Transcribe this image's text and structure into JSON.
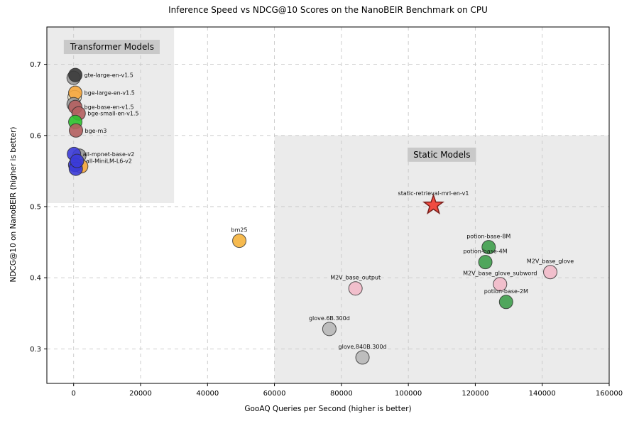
{
  "chart_data": {
    "type": "scatter",
    "title": "Inference Speed vs NDCG@10 Scores on the NanoBEIR Benchmark on CPU",
    "xlabel": "GooAQ Queries per Second (higher is better)",
    "ylabel": "NDCG@10 on NanoBEIR (higher is better)",
    "xlim": [
      -8000,
      160000
    ],
    "ylim": [
      0.2515,
      0.7525
    ],
    "grid": true,
    "legend": "none",
    "colors": {
      "grid": "#c8c8c8",
      "region_fill": "#ebebeb",
      "region_label_bg": "#c9c9c9",
      "marker_edge": "#2a2a2a",
      "star_fill": "#f04338",
      "star_edge": "#7a201c",
      "text": "#000000"
    },
    "xticks": [
      {
        "v": 0,
        "label": "0"
      },
      {
        "v": 20000,
        "label": "20000"
      },
      {
        "v": 40000,
        "label": "40000"
      },
      {
        "v": 60000,
        "label": "60000"
      },
      {
        "v": 80000,
        "label": "80000"
      },
      {
        "v": 100000,
        "label": "100000"
      },
      {
        "v": 120000,
        "label": "120000"
      },
      {
        "v": 140000,
        "label": "140000"
      },
      {
        "v": 160000,
        "label": "160000"
      }
    ],
    "yticks": [
      {
        "v": 0.3,
        "label": "0.3"
      },
      {
        "v": 0.4,
        "label": "0.4"
      },
      {
        "v": 0.5,
        "label": "0.5"
      },
      {
        "v": 0.6,
        "label": "0.6"
      },
      {
        "v": 0.7,
        "label": "0.7"
      }
    ],
    "regions": [
      {
        "name": "transformer-models-region",
        "label": "Transformer Models",
        "x0": -8000,
        "x1": 30000,
        "y0": 0.505,
        "y1": 0.7525,
        "label_x": 11500,
        "label_y": 0.7245
      },
      {
        "name": "static-models-region",
        "label": "Static Models",
        "x0": 60000,
        "x1": 160000,
        "y0": 0.2515,
        "y1": 0.6,
        "label_x": 110000,
        "label_y": 0.573
      }
    ],
    "points": [
      {
        "label": "",
        "x": 0,
        "y": 0.681,
        "color": "#9a9a9a",
        "marker": "circle",
        "label_pos": "none"
      },
      {
        "label": "gte-large-en-v1.5",
        "x": 500,
        "y": 0.685,
        "color": "#383838",
        "marker": "circle",
        "label_pos": "right"
      },
      {
        "label": "",
        "x": 300,
        "y": 0.654,
        "color": "#f2ecd0",
        "marker": "circle",
        "label_pos": "none"
      },
      {
        "label": "bge-large-en-v1.5",
        "x": 500,
        "y": 0.66,
        "color": "#f5a63c",
        "marker": "circle",
        "label_pos": "right"
      },
      {
        "label": "",
        "x": 0,
        "y": 0.644,
        "color": "#9a9a9a",
        "marker": "circle",
        "label_pos": "none"
      },
      {
        "label": "bge-base-en-v1.5",
        "x": 500,
        "y": 0.64,
        "color": "#b45f5f",
        "marker": "circle",
        "label_pos": "right"
      },
      {
        "label": "bge-small-en-v1.5",
        "x": 1500,
        "y": 0.631,
        "color": "#b45f5f",
        "marker": "circle",
        "label_pos": "right"
      },
      {
        "label": "",
        "x": 500,
        "y": 0.619,
        "color": "#2ec22e",
        "marker": "circle",
        "label_pos": "none"
      },
      {
        "label": "bge-m3",
        "x": 700,
        "y": 0.607,
        "color": "#b45f5f",
        "marker": "circle",
        "label_pos": "right"
      },
      {
        "label": "",
        "x": 1700,
        "y": 0.5716,
        "color": "#9a9a9a",
        "marker": "circle",
        "label_pos": "none"
      },
      {
        "label": "",
        "x": 2250,
        "y": 0.5566,
        "color": "#f5a63c",
        "marker": "circle",
        "label_pos": "none"
      },
      {
        "label": "all-mpnet-base-v2",
        "x": 100,
        "y": 0.574,
        "color": "#3b3bd8",
        "marker": "circle",
        "label_pos": "right"
      },
      {
        "label": "",
        "x": 450,
        "y": 0.5586,
        "color": "#3b3bd8",
        "marker": "circle",
        "label_pos": "none"
      },
      {
        "label": "",
        "x": 650,
        "y": 0.5532,
        "color": "#3b3bd8",
        "marker": "circle",
        "label_pos": "none"
      },
      {
        "label": "all-MiniLM-L6-v2",
        "x": 1000,
        "y": 0.5642,
        "color": "#3b3bd8",
        "marker": "circle",
        "label_pos": "right"
      },
      {
        "label": "bm25",
        "x": 49500,
        "y": 0.452,
        "color": "#f5b33c",
        "marker": "circle",
        "label_pos": "above"
      },
      {
        "label": "static-retrieval-mrl-en-v1",
        "x": 107500,
        "y": 0.502,
        "color": "#f04338",
        "marker": "star",
        "label_pos": "above"
      },
      {
        "label": "potion-base-8M",
        "x": 124000,
        "y": 0.443,
        "color": "#3f9e4d",
        "marker": "circle",
        "label_pos": "above"
      },
      {
        "label": "potion-base-4M",
        "x": 123000,
        "y": 0.422,
        "color": "#3f9e4d",
        "marker": "circle",
        "label_pos": "above"
      },
      {
        "label": "M2V_base_glove",
        "x": 142400,
        "y": 0.408,
        "color": "#f2bac9",
        "marker": "circle",
        "label_pos": "above"
      },
      {
        "label": "M2V_base_glove_subword",
        "x": 127400,
        "y": 0.391,
        "color": "#f2bac9",
        "marker": "circle",
        "label_pos": "above"
      },
      {
        "label": "M2V_base_output",
        "x": 84200,
        "y": 0.385,
        "color": "#f2bac9",
        "marker": "circle",
        "label_pos": "above"
      },
      {
        "label": "potion-base-2M",
        "x": 129200,
        "y": 0.366,
        "color": "#3f9e4d",
        "marker": "circle",
        "label_pos": "above"
      },
      {
        "label": "glove.6B.300d",
        "x": 76400,
        "y": 0.328,
        "color": "#b8b8b8",
        "marker": "circle",
        "label_pos": "above"
      },
      {
        "label": "glove.840B.300d",
        "x": 86300,
        "y": 0.288,
        "color": "#b8b8b8",
        "marker": "circle",
        "label_pos": "above"
      }
    ]
  }
}
